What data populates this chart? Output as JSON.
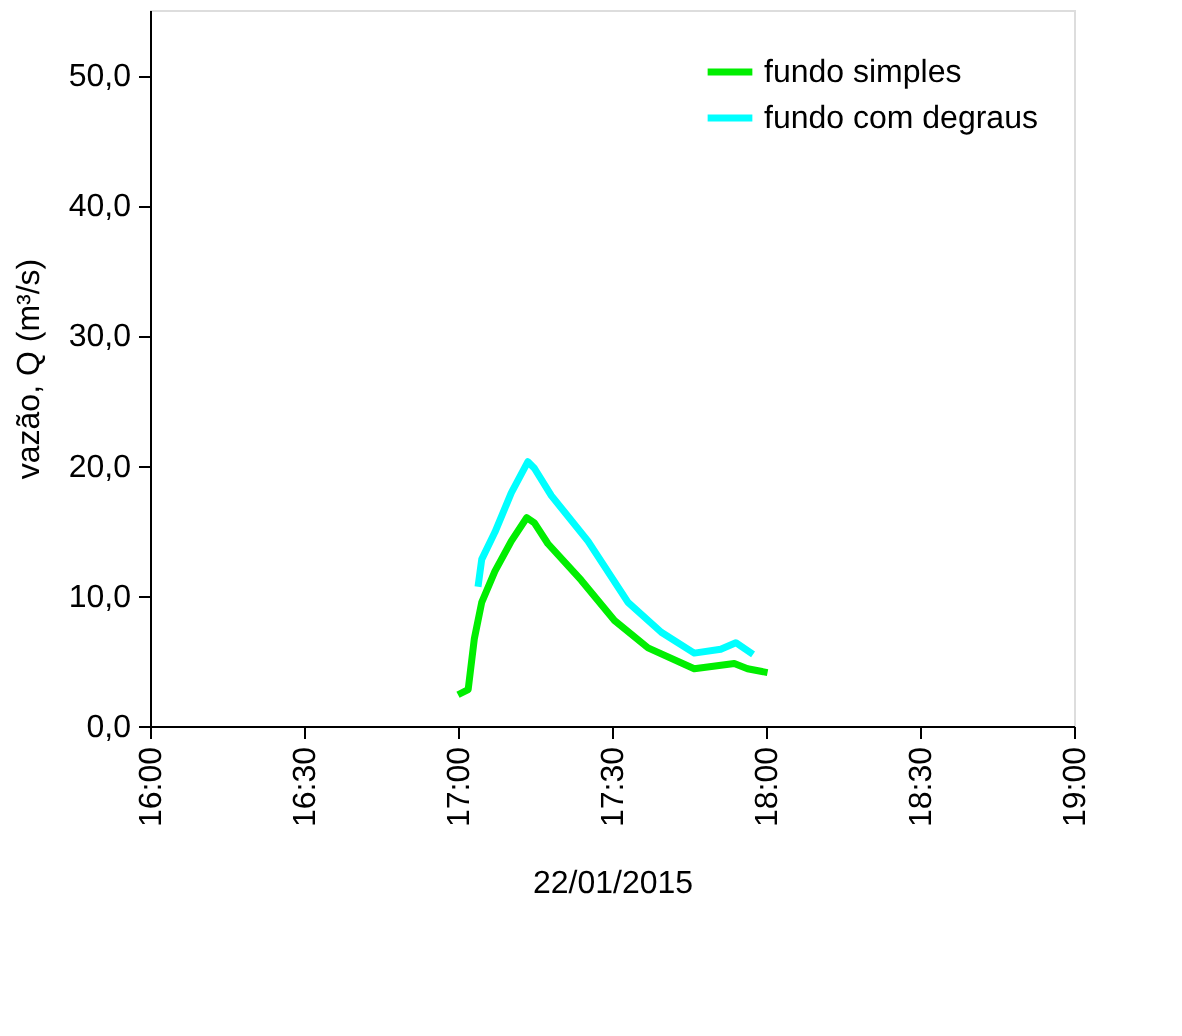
{
  "chart_data": {
    "type": "line",
    "xlabel": "22/01/2015",
    "ylabel": "vazão, Q (m³/s)",
    "xlim": [
      16,
      19
    ],
    "ylim": [
      0,
      55
    ],
    "xticks": [
      {
        "value": 16,
        "label": "16:00"
      },
      {
        "value": 16.5,
        "label": "16:30"
      },
      {
        "value": 17,
        "label": "17:00"
      },
      {
        "value": 17.5,
        "label": "17:30"
      },
      {
        "value": 18,
        "label": "18:00"
      },
      {
        "value": 18.5,
        "label": "18:30"
      },
      {
        "value": 19,
        "label": "19:00"
      }
    ],
    "yticks": [
      {
        "value": 0,
        "label": "0,0"
      },
      {
        "value": 10,
        "label": "10,0"
      },
      {
        "value": 20,
        "label": "20,0"
      },
      {
        "value": 30,
        "label": "30,0"
      },
      {
        "value": 40,
        "label": "40,0"
      },
      {
        "value": 50,
        "label": "50,0"
      }
    ],
    "grid": false,
    "legend": "top right",
    "marker": "none",
    "line_style": "solid",
    "series": [
      {
        "name": "fundo simples",
        "color": "#00ee00",
        "x": [
          17.0,
          17.033,
          17.053,
          17.077,
          17.12,
          17.173,
          17.223,
          17.248,
          17.292,
          17.4,
          17.508,
          17.617,
          17.767,
          17.897,
          17.94,
          18.005
        ],
        "values": [
          2.4,
          2.8,
          6.7,
          9.5,
          11.9,
          14.2,
          16.0,
          15.6,
          14.0,
          11.2,
          8.1,
          6.0,
          4.4,
          4.8,
          4.4,
          4.1
        ]
      },
      {
        "name": "fundo com degraus",
        "color": "#00ffff",
        "x": [
          17.065,
          17.077,
          17.12,
          17.173,
          17.227,
          17.248,
          17.303,
          17.422,
          17.552,
          17.66,
          17.767,
          17.853,
          17.902,
          17.958
        ],
        "values": [
          10.7,
          12.8,
          14.9,
          17.9,
          20.3,
          19.8,
          17.7,
          14.2,
          9.5,
          7.2,
          5.6,
          5.9,
          6.4,
          5.5
        ]
      }
    ]
  }
}
